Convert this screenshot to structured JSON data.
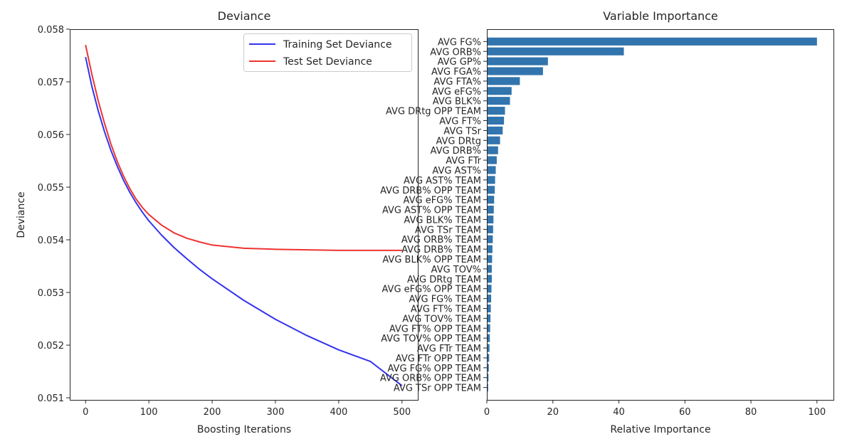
{
  "chart_data": [
    {
      "type": "line",
      "title": "Deviance",
      "xlabel": "Boosting Iterations",
      "ylabel": "Deviance",
      "xlim": [
        -25,
        525
      ],
      "ylim": [
        0.05096,
        0.058
      ],
      "xticks": [
        0,
        100,
        200,
        300,
        400,
        500
      ],
      "xtick_labels": [
        "0",
        "100",
        "200",
        "300",
        "400",
        "500"
      ],
      "yticks": [
        0.051,
        0.052,
        0.053,
        0.054,
        0.055,
        0.056,
        0.057,
        0.058
      ],
      "ytick_labels": [
        "0.051",
        "0.052",
        "0.053",
        "0.054",
        "0.055",
        "0.056",
        "0.057",
        "0.058"
      ],
      "grid": false,
      "legend": "top-right",
      "series": [
        {
          "name": "Training Set Deviance",
          "color": "#3333ee",
          "x": [
            0,
            10,
            20,
            30,
            40,
            50,
            60,
            70,
            80,
            90,
            100,
            120,
            140,
            160,
            180,
            200,
            250,
            300,
            350,
            400,
            450,
            500
          ],
          "y": [
            0.05747,
            0.05691,
            0.05645,
            0.05605,
            0.0557,
            0.0554,
            0.05513,
            0.0549,
            0.0547,
            0.05452,
            0.05436,
            0.05409,
            0.05385,
            0.05364,
            0.05344,
            0.05326,
            0.05285,
            0.05249,
            0.05218,
            0.05191,
            0.05169,
            0.05123
          ]
        },
        {
          "name": "Test Set Deviance",
          "color": "#ee3333",
          "x": [
            0,
            10,
            20,
            30,
            40,
            50,
            60,
            70,
            80,
            90,
            100,
            120,
            140,
            160,
            180,
            200,
            250,
            300,
            350,
            400,
            450,
            500
          ],
          "y": [
            0.0577,
            0.05714,
            0.05664,
            0.05621,
            0.05582,
            0.05549,
            0.05521,
            0.05497,
            0.05477,
            0.05461,
            0.05448,
            0.05428,
            0.05413,
            0.05403,
            0.05396,
            0.0539,
            0.05384,
            0.05382,
            0.05381,
            0.0538,
            0.0538,
            0.0538
          ]
        }
      ]
    },
    {
      "type": "bar",
      "orientation": "horizontal",
      "title": "Variable Importance",
      "xlabel": "Relative Importance",
      "ylabel": "",
      "xlim": [
        0,
        105
      ],
      "xticks": [
        0,
        20,
        40,
        60,
        80,
        100
      ],
      "xtick_labels": [
        "0",
        "20",
        "40",
        "60",
        "80",
        "100"
      ],
      "grid": false,
      "bar_color": "#3274ad",
      "categories": [
        "AVG FG%",
        "AVG ORB%",
        "AVG GP%",
        "AVG FGA%",
        "AVG FTA%",
        "AVG eFG%",
        "AVG BLK%",
        "AVG DRtg OPP TEAM",
        "AVG FT%",
        "AVG TSr",
        "AVG DRtg",
        "AVG DRB%",
        "AVG FTr",
        "AVG AST%",
        "AVG AST% TEAM",
        "AVG DRB% OPP TEAM",
        "AVG eFG% TEAM",
        "AVG AST% OPP TEAM",
        "AVG BLK% TEAM",
        "AVG TSr TEAM",
        "AVG ORB% TEAM",
        "AVG DRB% TEAM",
        "AVG BLK% OPP TEAM",
        "AVG TOV%",
        "AVG DRtg TEAM",
        "AVG eFG% OPP TEAM",
        "AVG FG% TEAM",
        "AVG FT% TEAM",
        "AVG TOV% TEAM",
        "AVG FT% OPP TEAM",
        "AVG TOV% OPP TEAM",
        "AVG FTr TEAM",
        "AVG FTr OPP TEAM",
        "AVG FG% OPP TEAM",
        "AVG ORB% OPP TEAM",
        "AVG TSr OPP TEAM"
      ],
      "values": [
        100,
        41.5,
        18.5,
        17.0,
        10.0,
        7.5,
        7.0,
        5.5,
        5.2,
        4.8,
        4.0,
        3.4,
        3.0,
        2.7,
        2.5,
        2.4,
        2.2,
        2.1,
        2.0,
        1.9,
        1.8,
        1.7,
        1.6,
        1.5,
        1.5,
        1.4,
        1.3,
        1.2,
        1.1,
        1.0,
        0.9,
        0.8,
        0.7,
        0.6,
        0.5,
        0.4
      ]
    }
  ]
}
